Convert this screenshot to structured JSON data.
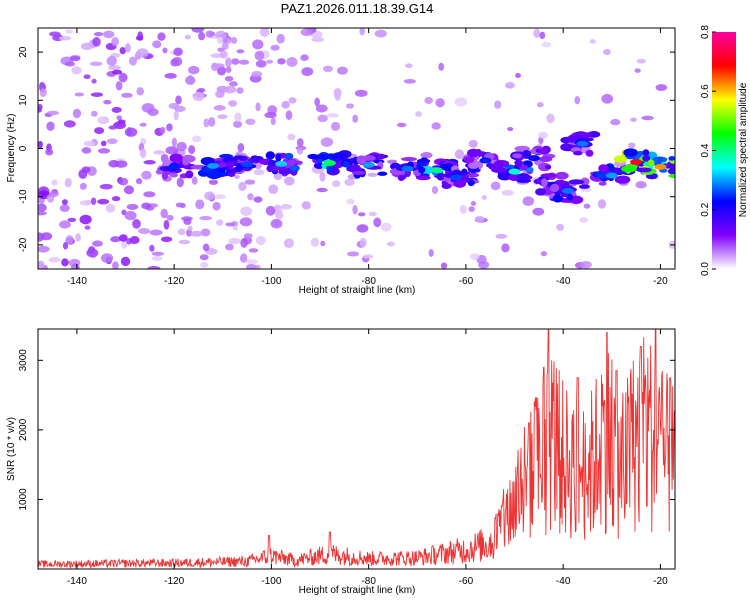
{
  "title": "PAZ1.2026.011.18.39.G14",
  "colors": {
    "snr_line": "#ee3333",
    "axis": "#000000",
    "background": "#ffffff"
  },
  "chart_data": [
    {
      "type": "heatmap",
      "name": "spectrogram",
      "xlabel": "Height of straight line (km)",
      "ylabel": "Frequency (Hz)",
      "xlim": [
        -148,
        -17
      ],
      "ylim": [
        -25,
        25
      ],
      "xticks": [
        -140,
        -120,
        -100,
        -80,
        -60,
        -40,
        -20
      ],
      "xtick_labels": [
        "-140",
        "-120",
        "-100",
        "-80",
        "-60",
        "-40",
        "-20"
      ],
      "yticks": [
        -20,
        -10,
        0,
        10,
        20
      ],
      "ytick_labels": [
        "-20",
        "-10",
        "0",
        "10",
        "20"
      ],
      "colorbar": {
        "label": "Normalized spectral amplitude",
        "range": [
          0,
          0.8
        ],
        "ticks": [
          0.0,
          0.2,
          0.4,
          0.6,
          0.8
        ],
        "tick_labels": [
          "0.0",
          "0.2",
          "0.4",
          "0.6",
          "0.8"
        ],
        "stops": [
          "#ffffff",
          "#8000ff",
          "#0000ff",
          "#00ffff",
          "#00ff00",
          "#ffff00",
          "#ff0000",
          "#ff00a0"
        ]
      },
      "ridge": [
        {
          "x": -120,
          "y": -3.8,
          "a": 0.24
        },
        {
          "x": -112,
          "y": -3.6,
          "a": 0.3
        },
        {
          "x": -105,
          "y": -3.3,
          "a": 0.26
        },
        {
          "x": -98,
          "y": -3.2,
          "a": 0.32
        },
        {
          "x": -88,
          "y": -3.0,
          "a": 0.42
        },
        {
          "x": -80,
          "y": -3.4,
          "a": 0.3
        },
        {
          "x": -72,
          "y": -4.2,
          "a": 0.28
        },
        {
          "x": -66,
          "y": -4.5,
          "a": 0.4
        },
        {
          "x": -62,
          "y": -6.0,
          "a": 0.26
        },
        {
          "x": -56,
          "y": -2.5,
          "a": 0.24
        },
        {
          "x": -50,
          "y": -4.8,
          "a": 0.36
        },
        {
          "x": -46,
          "y": -2.0,
          "a": 0.22
        },
        {
          "x": -42,
          "y": -7.5,
          "a": 0.22
        },
        {
          "x": -39,
          "y": -8.8,
          "a": 0.28
        },
        {
          "x": -36,
          "y": 1.0,
          "a": 0.28
        },
        {
          "x": -30,
          "y": -5.6,
          "a": 0.3
        },
        {
          "x": -25,
          "y": -2.8,
          "a": 0.7
        },
        {
          "x": -20,
          "y": -3.8,
          "a": 0.62
        }
      ]
    },
    {
      "type": "line",
      "name": "snr",
      "xlabel": "Height of straight line (km)",
      "ylabel": "SNR (10 * v/v)",
      "xlim": [
        -148,
        -17
      ],
      "ylim": [
        0,
        3450
      ],
      "xticks": [
        -140,
        -120,
        -100,
        -80,
        -60,
        -40,
        -20
      ],
      "xtick_labels": [
        "-140",
        "-120",
        "-100",
        "-80",
        "-60",
        "-40",
        "-20"
      ],
      "yticks": [
        1000,
        2000,
        3000
      ],
      "ytick_labels": [
        "1000",
        "2000",
        "3000"
      ],
      "envelope": {
        "x": [
          -148,
          -120,
          -105,
          -100,
          -95,
          -88,
          -80,
          -70,
          -60,
          -55,
          -52,
          -48,
          -45,
          -42,
          -40,
          -35,
          -31,
          -28,
          -25,
          -22,
          -20,
          -17
        ],
        "y": [
          120,
          150,
          190,
          330,
          210,
          380,
          260,
          280,
          480,
          650,
          1200,
          2100,
          2600,
          3300,
          2700,
          2400,
          3400,
          2500,
          3300,
          3400,
          2900,
          2700
        ]
      },
      "peaks": [
        {
          "x": -100.5,
          "y": 480
        },
        {
          "x": -88,
          "y": 530
        },
        {
          "x": -47,
          "y": 2100
        },
        {
          "x": -44,
          "y": 2900
        },
        {
          "x": -43,
          "y": 3450
        },
        {
          "x": -37,
          "y": 2750
        },
        {
          "x": -31,
          "y": 3400
        },
        {
          "x": -29,
          "y": 2850
        },
        {
          "x": -24,
          "y": 3200
        },
        {
          "x": -21,
          "y": 3450
        },
        {
          "x": -18,
          "y": 2750
        }
      ]
    }
  ]
}
